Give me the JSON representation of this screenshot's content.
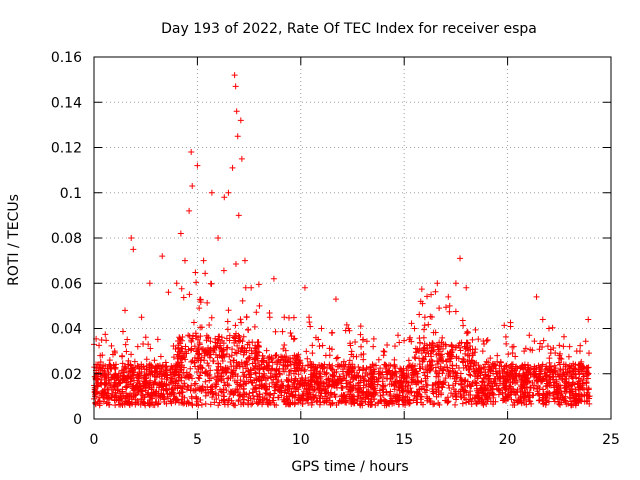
{
  "chart_data": {
    "type": "scatter",
    "title": "Day 193 of 2022, Rate Of TEC Index for receiver espa",
    "xlabel": "GPS time / hours",
    "ylabel": "ROTI / TECUs",
    "xlim": [
      0,
      25
    ],
    "ylim": [
      0,
      0.16
    ],
    "x_ticks": [
      0,
      5,
      10,
      15,
      20,
      25
    ],
    "y_ticks": [
      0,
      0.02,
      0.04,
      0.06,
      0.08,
      0.1,
      0.12,
      0.14,
      0.16
    ],
    "x_tick_labels": [
      "0",
      "5",
      "10",
      "15",
      "20",
      "25"
    ],
    "y_tick_labels": [
      "0",
      "0.02",
      "0.04",
      "0.06",
      "0.08",
      "0.1",
      "0.12",
      "0.14",
      "0.16"
    ],
    "grid": true,
    "marker": "+",
    "marker_color": "#ff0000",
    "series": [
      {
        "name": "ROTI",
        "points": [
          [
            0.0,
            0.033
          ],
          [
            0.3,
            0.028
          ],
          [
            1.0,
            0.03
          ],
          [
            1.5,
            0.048
          ],
          [
            1.8,
            0.08
          ],
          [
            1.9,
            0.075
          ],
          [
            2.3,
            0.045
          ],
          [
            2.7,
            0.06
          ],
          [
            3.3,
            0.072
          ],
          [
            3.6,
            0.056
          ],
          [
            4.0,
            0.06
          ],
          [
            4.2,
            0.082
          ],
          [
            4.4,
            0.07
          ],
          [
            4.6,
            0.092
          ],
          [
            4.7,
            0.118
          ],
          [
            4.75,
            0.103
          ],
          [
            5.0,
            0.112
          ],
          [
            5.3,
            0.07
          ],
          [
            5.7,
            0.1
          ],
          [
            6.0,
            0.08
          ],
          [
            6.3,
            0.098
          ],
          [
            6.5,
            0.1
          ],
          [
            6.7,
            0.111
          ],
          [
            6.8,
            0.152
          ],
          [
            6.85,
            0.147
          ],
          [
            6.9,
            0.136
          ],
          [
            6.95,
            0.125
          ],
          [
            7.1,
            0.132
          ],
          [
            7.15,
            0.115
          ],
          [
            7.0,
            0.09
          ],
          [
            7.3,
            0.07
          ],
          [
            7.6,
            0.058
          ],
          [
            8.0,
            0.05
          ],
          [
            8.5,
            0.045
          ],
          [
            8.7,
            0.062
          ],
          [
            9.2,
            0.045
          ],
          [
            9.5,
            0.038
          ],
          [
            10.2,
            0.058
          ],
          [
            10.4,
            0.045
          ],
          [
            11.0,
            0.04
          ],
          [
            11.5,
            0.038
          ],
          [
            11.7,
            0.053
          ],
          [
            12.3,
            0.04
          ],
          [
            13.0,
            0.035
          ],
          [
            13.5,
            0.032
          ],
          [
            14.0,
            0.03
          ],
          [
            14.7,
            0.037
          ],
          [
            15.5,
            0.04
          ],
          [
            15.8,
            0.052
          ],
          [
            16.0,
            0.045
          ],
          [
            16.3,
            0.055
          ],
          [
            16.6,
            0.06
          ],
          [
            17.2,
            0.05
          ],
          [
            17.5,
            0.06
          ],
          [
            17.7,
            0.071
          ],
          [
            18.0,
            0.058
          ],
          [
            18.3,
            0.035
          ],
          [
            18.8,
            0.03
          ],
          [
            19.5,
            0.028
          ],
          [
            20.3,
            0.032
          ],
          [
            20.8,
            0.03
          ],
          [
            21.4,
            0.054
          ],
          [
            21.7,
            0.044
          ],
          [
            22.0,
            0.04
          ],
          [
            22.5,
            0.028
          ],
          [
            23.0,
            0.032
          ],
          [
            23.5,
            0.03
          ],
          [
            23.9,
            0.044
          ]
        ]
      }
    ]
  }
}
